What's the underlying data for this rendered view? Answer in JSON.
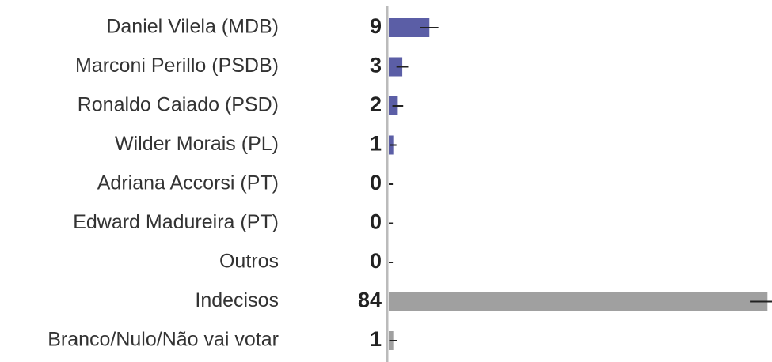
{
  "chart_data": {
    "type": "bar",
    "orientation": "horizontal",
    "categories": [
      "Daniel Vilela (MDB)",
      "Marconi Perillo (PSDB)",
      "Ronaldo Caiado (PSD)",
      "Wilder Morais (PL)",
      "Adriana Accorsi (PT)",
      "Edward Madureira (PT)",
      "Outros",
      "Indecisos",
      "Branco/Nulo/Não vai votar"
    ],
    "values": [
      9,
      3,
      2,
      1,
      0,
      0,
      0,
      84,
      1
    ],
    "errors": [
      2,
      1.3,
      1.2,
      0.7,
      0.9,
      0.9,
      0.9,
      3.9,
      0.9
    ],
    "colors": [
      "#5b5ea6",
      "#5b5ea6",
      "#5b5ea6",
      "#5b5ea6",
      "#5b5ea6",
      "#5b5ea6",
      "#5b5ea6",
      "#a0a0a0",
      "#a0a0a0"
    ],
    "xlim": [
      0,
      85
    ]
  }
}
